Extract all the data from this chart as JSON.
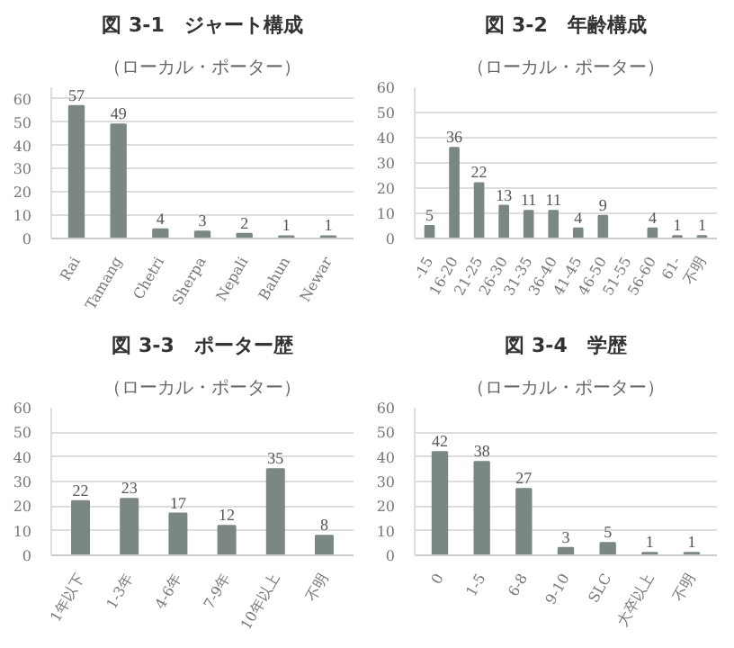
{
  "chart_data": [
    {
      "type": "bar",
      "title": "図 3-1　ジャート構成",
      "subtitle": "（ローカル・ポーター）",
      "categories": [
        "Rai",
        "Tamang",
        "Chetri",
        "Sherpa",
        "Nepali",
        "Bahun",
        "Newar"
      ],
      "values": [
        57,
        49,
        4,
        3,
        2,
        1,
        1
      ],
      "color": "#7b8785",
      "ylim": [
        0,
        65
      ],
      "yticks": [
        0,
        10,
        20,
        30,
        40,
        50,
        60
      ],
      "grid": "y",
      "data_labels": true
    },
    {
      "type": "bar",
      "title": "図 3-2　年齢構成",
      "subtitle": "（ローカル・ポーター）",
      "categories": [
        "-15",
        "16-20",
        "21-25",
        "26-30",
        "31-35",
        "36-40",
        "41-45",
        "46-50",
        "51-55",
        "56-60",
        "61-",
        "不明"
      ],
      "values": [
        5,
        36,
        22,
        13,
        11,
        11,
        4,
        9,
        null,
        4,
        1,
        1
      ],
      "color": "#7b8785",
      "ylim": [
        0,
        60
      ],
      "yticks": [
        0,
        10,
        20,
        30,
        40,
        50,
        60
      ],
      "grid": "y",
      "data_labels": true
    },
    {
      "type": "bar",
      "title": "図 3-3　ポーター歴",
      "subtitle": "（ローカル・ポーター）",
      "categories": [
        "1年以下",
        "1-3年",
        "4-6年",
        "7-9年",
        "10年以上",
        "不明"
      ],
      "values": [
        22,
        23,
        17,
        12,
        35,
        8
      ],
      "color": "#7b8785",
      "ylim": [
        0,
        60
      ],
      "yticks": [
        0,
        10,
        20,
        30,
        40,
        50,
        60
      ],
      "grid": "y",
      "data_labels": true
    },
    {
      "type": "bar",
      "title": "図 3-4　学歴",
      "subtitle": "（ローカル・ポーター）",
      "categories": [
        "0",
        "1-5",
        "6-8",
        "9-10",
        "SLC",
        "大卒以上",
        "不明"
      ],
      "values": [
        42,
        38,
        27,
        3,
        5,
        1,
        1
      ],
      "color": "#7b8785",
      "ylim": [
        0,
        60
      ],
      "yticks": [
        0,
        10,
        20,
        30,
        40,
        50,
        60
      ],
      "grid": "y",
      "data_labels": true
    }
  ]
}
